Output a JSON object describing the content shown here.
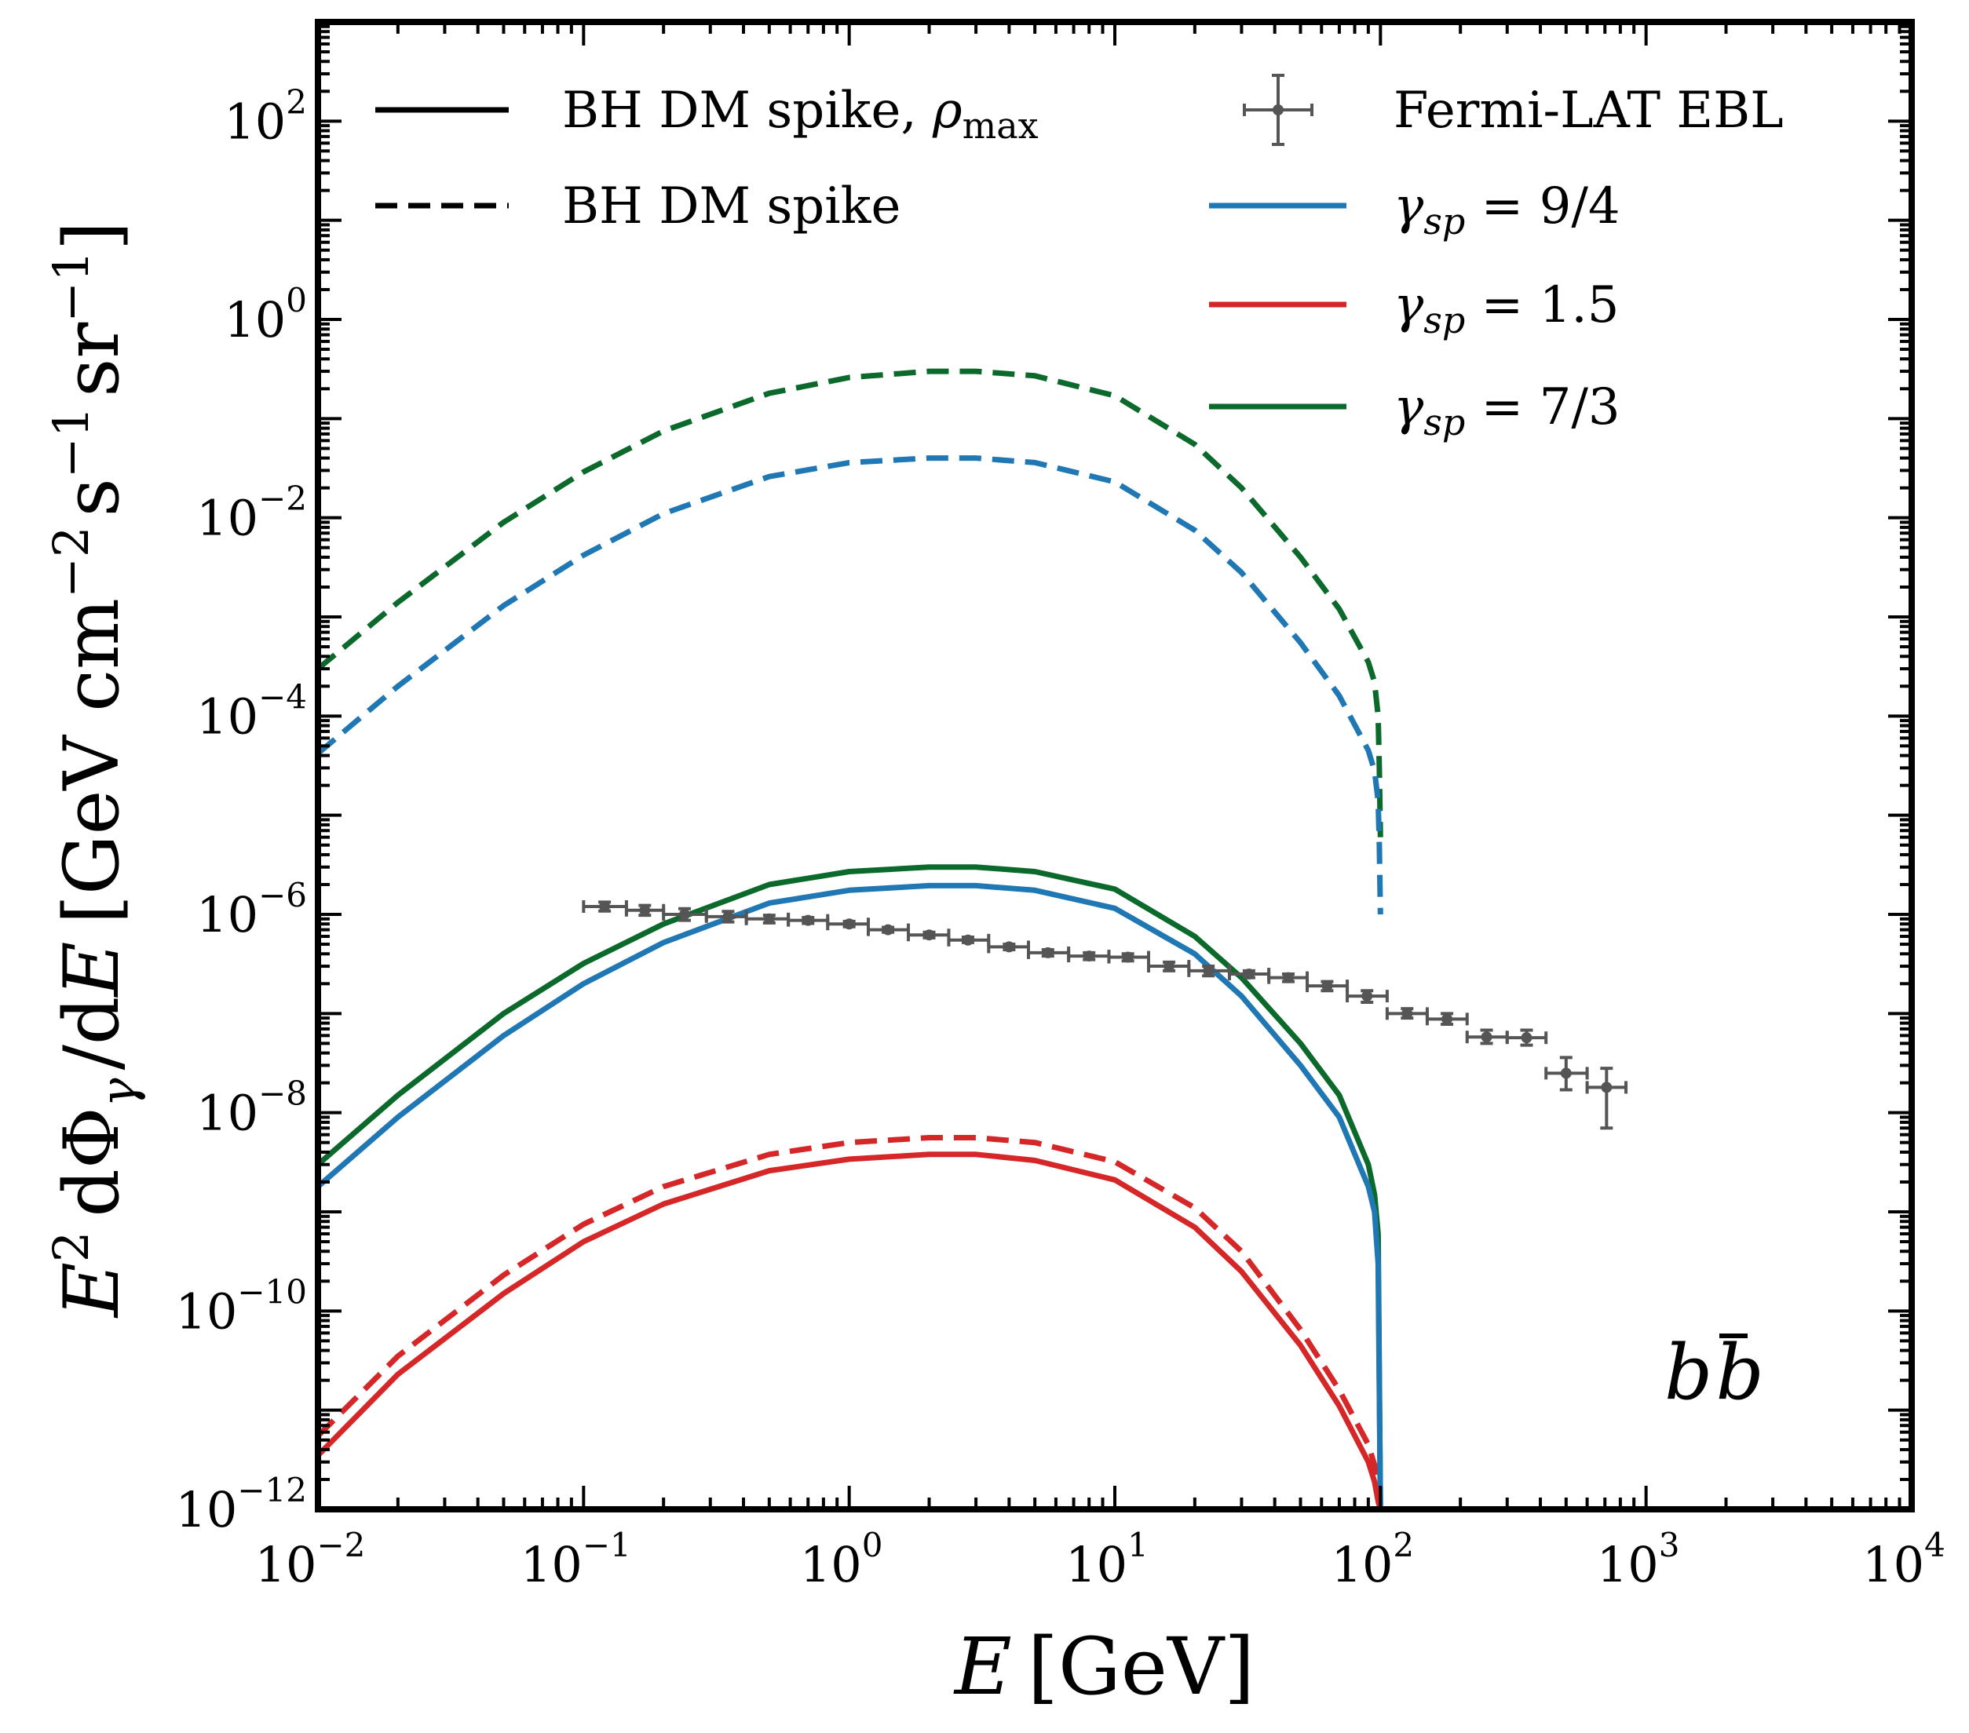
{
  "chart_data": {
    "type": "line",
    "xscale": "log",
    "yscale": "log",
    "xlim": [
      0.01,
      10000
    ],
    "ylim": [
      1e-12,
      1000
    ],
    "x_ticks": [
      {
        "base": "10",
        "exp": "−2",
        "value": 0.01
      },
      {
        "base": "10",
        "exp": "−1",
        "value": 0.1
      },
      {
        "base": "10",
        "exp": "0",
        "value": 1
      },
      {
        "base": "10",
        "exp": "1",
        "value": 10
      },
      {
        "base": "10",
        "exp": "2",
        "value": 100
      },
      {
        "base": "10",
        "exp": "3",
        "value": 1000
      },
      {
        "base": "10",
        "exp": "4",
        "value": 10000
      }
    ],
    "y_ticks": [
      {
        "base": "10",
        "exp": "−12",
        "value": 1e-12
      },
      {
        "base": "10",
        "exp": "−10",
        "value": 1e-10
      },
      {
        "base": "10",
        "exp": "−8",
        "value": 1e-08
      },
      {
        "base": "10",
        "exp": "−6",
        "value": 1e-06
      },
      {
        "base": "10",
        "exp": "−4",
        "value": 0.0001
      },
      {
        "base": "10",
        "exp": "−2",
        "value": 0.01
      },
      {
        "base": "10",
        "exp": "0",
        "value": 1
      },
      {
        "base": "10",
        "exp": "2",
        "value": 100
      }
    ],
    "xlabel": "E [GeV]",
    "ylabel": "E² dΦγ / dE [GeV cm⁻² s⁻¹ sr⁻¹]",
    "annotation": "bb̄",
    "legend": {
      "placement": "top",
      "style_entries": [
        {
          "label": "BH DM spike, ρmax",
          "dash": "solid"
        },
        {
          "label": "BH DM spike",
          "dash": "dashed"
        }
      ],
      "data_entry": {
        "label": "Fermi-LAT EBL"
      },
      "color_entries": [
        {
          "label": "γsp = 9/4",
          "color": "#1f77b4"
        },
        {
          "label": "γsp = 1.5",
          "color": "#d62728"
        },
        {
          "label": "γsp = 7/3",
          "color": "#0b6a2b"
        }
      ]
    },
    "series": [
      {
        "name": "γsp = 7/3, BH DM spike",
        "color": "#0b6a2b",
        "dash": "dashed",
        "x": [
          0.01,
          0.02,
          0.05,
          0.1,
          0.2,
          0.5,
          1,
          2,
          3,
          5,
          10,
          20,
          30,
          50,
          70,
          90,
          95,
          98,
          99,
          100
        ],
        "y": [
          0.0003,
          0.0014,
          0.009,
          0.029,
          0.075,
          0.18,
          0.26,
          0.3,
          0.3,
          0.27,
          0.17,
          0.055,
          0.02,
          0.004,
          0.0012,
          0.00035,
          0.00022,
          0.0001,
          3e-05,
          6e-06
        ]
      },
      {
        "name": "γsp = 9/4, BH DM spike",
        "color": "#1f77b4",
        "dash": "dashed",
        "x": [
          0.01,
          0.02,
          0.05,
          0.1,
          0.2,
          0.5,
          1,
          2,
          3,
          5,
          10,
          20,
          30,
          50,
          70,
          90,
          95,
          98,
          99,
          100
        ],
        "y": [
          4.2e-05,
          0.0002,
          0.0013,
          0.0042,
          0.011,
          0.026,
          0.036,
          0.04,
          0.04,
          0.036,
          0.023,
          0.0075,
          0.0028,
          0.00055,
          0.00016,
          4.5e-05,
          2.8e-05,
          1.4e-05,
          5e-06,
          1e-06
        ]
      },
      {
        "name": "γsp = 1.5, BH DM spike",
        "color": "#d62728",
        "dash": "dashed",
        "x": [
          0.01,
          0.02,
          0.05,
          0.1,
          0.2,
          0.5,
          1,
          2,
          3,
          5,
          10,
          20,
          30,
          50,
          70,
          90,
          95,
          98,
          100
        ],
        "y": [
          5.5e-12,
          3.5e-11,
          2.3e-10,
          7.5e-10,
          1.8e-09,
          3.8e-09,
          5e-09,
          5.6e-09,
          5.6e-09,
          5e-09,
          3.2e-09,
          1.1e-09,
          4e-10,
          6.5e-11,
          1.6e-11,
          4.5e-12,
          2.8e-12,
          1.6e-12,
          1e-12
        ]
      },
      {
        "name": "γsp = 7/3, BH DM spike, ρmax",
        "color": "#0b6a2b",
        "dash": "solid",
        "x": [
          0.01,
          0.02,
          0.05,
          0.1,
          0.2,
          0.5,
          1,
          2,
          3,
          5,
          10,
          20,
          30,
          50,
          70,
          90,
          95,
          98,
          100
        ],
        "y": [
          3e-09,
          1.5e-08,
          1e-07,
          3.2e-07,
          8e-07,
          2e-06,
          2.7e-06,
          3e-06,
          3e-06,
          2.7e-06,
          1.8e-06,
          6e-07,
          2.3e-07,
          5e-08,
          1.5e-08,
          3e-09,
          1.5e-09,
          6e-10,
          1e-12
        ]
      },
      {
        "name": "γsp = 9/4, BH DM spike, ρmax",
        "color": "#1f77b4",
        "dash": "solid",
        "x": [
          0.01,
          0.02,
          0.05,
          0.1,
          0.2,
          0.5,
          1,
          2,
          3,
          5,
          10,
          20,
          30,
          50,
          70,
          90,
          95,
          98,
          100
        ],
        "y": [
          1.8e-09,
          9e-09,
          6e-08,
          2e-07,
          5.2e-07,
          1.3e-06,
          1.75e-06,
          1.95e-06,
          1.95e-06,
          1.75e-06,
          1.15e-06,
          4e-07,
          1.5e-07,
          3e-08,
          9e-09,
          1.8e-09,
          1e-09,
          3e-10,
          1e-12
        ]
      },
      {
        "name": "γsp = 1.5, BH DM spike, ρmax",
        "color": "#d62728",
        "dash": "solid",
        "x": [
          0.01,
          0.02,
          0.05,
          0.1,
          0.2,
          0.5,
          1,
          2,
          3,
          5,
          10,
          20,
          30,
          50,
          70,
          90,
          95,
          98,
          100
        ],
        "y": [
          3.5e-12,
          2.3e-11,
          1.5e-10,
          5e-10,
          1.2e-09,
          2.6e-09,
          3.4e-09,
          3.8e-09,
          3.8e-09,
          3.3e-09,
          2.1e-09,
          7e-10,
          2.5e-10,
          4.5e-11,
          1.1e-11,
          3e-12,
          1.9e-12,
          1.2e-12,
          1e-12
        ]
      }
    ],
    "errorbar_series": {
      "name": "Fermi-LAT EBL",
      "color": "#555555",
      "points": [
        {
          "x": 0.12,
          "y": 1.2e-06,
          "xlo": 0.1,
          "xhi": 0.145,
          "ylo": 1.08e-06,
          "yhi": 1.33e-06
        },
        {
          "x": 0.17,
          "y": 1.1e-06,
          "xlo": 0.145,
          "xhi": 0.2,
          "ylo": 9.8e-07,
          "yhi": 1.23e-06
        },
        {
          "x": 0.24,
          "y": 1e-06,
          "xlo": 0.2,
          "xhi": 0.29,
          "ylo": 8.7e-07,
          "yhi": 1.14e-06
        },
        {
          "x": 0.35,
          "y": 9.5e-07,
          "xlo": 0.29,
          "xhi": 0.41,
          "ylo": 8.4e-07,
          "yhi": 1.07e-06
        },
        {
          "x": 0.5,
          "y": 9e-07,
          "xlo": 0.41,
          "xhi": 0.59,
          "ylo": 8.2e-07,
          "yhi": 9.8e-07
        },
        {
          "x": 0.7,
          "y": 8.7e-07,
          "xlo": 0.59,
          "xhi": 0.83,
          "ylo": 8.1e-07,
          "yhi": 9.3e-07
        },
        {
          "x": 1.0,
          "y": 8e-07,
          "xlo": 0.83,
          "xhi": 1.18,
          "ylo": 7.5e-07,
          "yhi": 8.5e-07
        },
        {
          "x": 1.4,
          "y": 7e-07,
          "xlo": 1.18,
          "xhi": 1.67,
          "ylo": 6.6e-07,
          "yhi": 7.4e-07
        },
        {
          "x": 2.0,
          "y": 6.2e-07,
          "xlo": 1.67,
          "xhi": 2.37,
          "ylo": 5.8e-07,
          "yhi": 6.6e-07
        },
        {
          "x": 2.8,
          "y": 5.5e-07,
          "xlo": 2.37,
          "xhi": 3.35,
          "ylo": 5.2e-07,
          "yhi": 5.9e-07
        },
        {
          "x": 4.0,
          "y": 4.7e-07,
          "xlo": 3.35,
          "xhi": 4.73,
          "ylo": 4.4e-07,
          "yhi": 5e-07
        },
        {
          "x": 5.6,
          "y": 4.1e-07,
          "xlo": 4.73,
          "xhi": 6.7,
          "ylo": 3.8e-07,
          "yhi": 4.4e-07
        },
        {
          "x": 8.0,
          "y": 3.8e-07,
          "xlo": 6.7,
          "xhi": 9.5,
          "ylo": 3.5e-07,
          "yhi": 4.1e-07
        },
        {
          "x": 11.2,
          "y": 3.7e-07,
          "xlo": 9.5,
          "xhi": 13.4,
          "ylo": 3.4e-07,
          "yhi": 4e-07
        },
        {
          "x": 16,
          "y": 3e-07,
          "xlo": 13.4,
          "xhi": 19,
          "ylo": 2.7e-07,
          "yhi": 3.3e-07
        },
        {
          "x": 22.5,
          "y": 2.7e-07,
          "xlo": 19,
          "xhi": 27,
          "ylo": 2.4e-07,
          "yhi": 3e-07
        },
        {
          "x": 32,
          "y": 2.5e-07,
          "xlo": 27,
          "xhi": 38,
          "ylo": 2.3e-07,
          "yhi": 2.7e-07
        },
        {
          "x": 45,
          "y": 2.3e-07,
          "xlo": 38,
          "xhi": 53,
          "ylo": 2.1e-07,
          "yhi": 2.5e-07
        },
        {
          "x": 63,
          "y": 1.9e-07,
          "xlo": 53,
          "xhi": 75,
          "ylo": 1.7e-07,
          "yhi": 2.1e-07
        },
        {
          "x": 89,
          "y": 1.5e-07,
          "xlo": 75,
          "xhi": 106,
          "ylo": 1.3e-07,
          "yhi": 1.7e-07
        },
        {
          "x": 126,
          "y": 1e-07,
          "xlo": 106,
          "xhi": 150,
          "ylo": 9e-08,
          "yhi": 1.12e-07
        },
        {
          "x": 178,
          "y": 8.8e-08,
          "xlo": 150,
          "xhi": 212,
          "ylo": 7.8e-08,
          "yhi": 1e-07
        },
        {
          "x": 251,
          "y": 5.8e-08,
          "xlo": 212,
          "xhi": 300,
          "ylo": 5e-08,
          "yhi": 6.8e-08
        },
        {
          "x": 355,
          "y": 5.7e-08,
          "xlo": 300,
          "xhi": 420,
          "ylo": 4.8e-08,
          "yhi": 6.8e-08
        },
        {
          "x": 500,
          "y": 2.5e-08,
          "xlo": 420,
          "xhi": 600,
          "ylo": 1.7e-08,
          "yhi": 3.6e-08
        },
        {
          "x": 710,
          "y": 1.8e-08,
          "xlo": 600,
          "xhi": 840,
          "ylo": 7e-09,
          "yhi": 2.8e-08
        }
      ]
    }
  }
}
